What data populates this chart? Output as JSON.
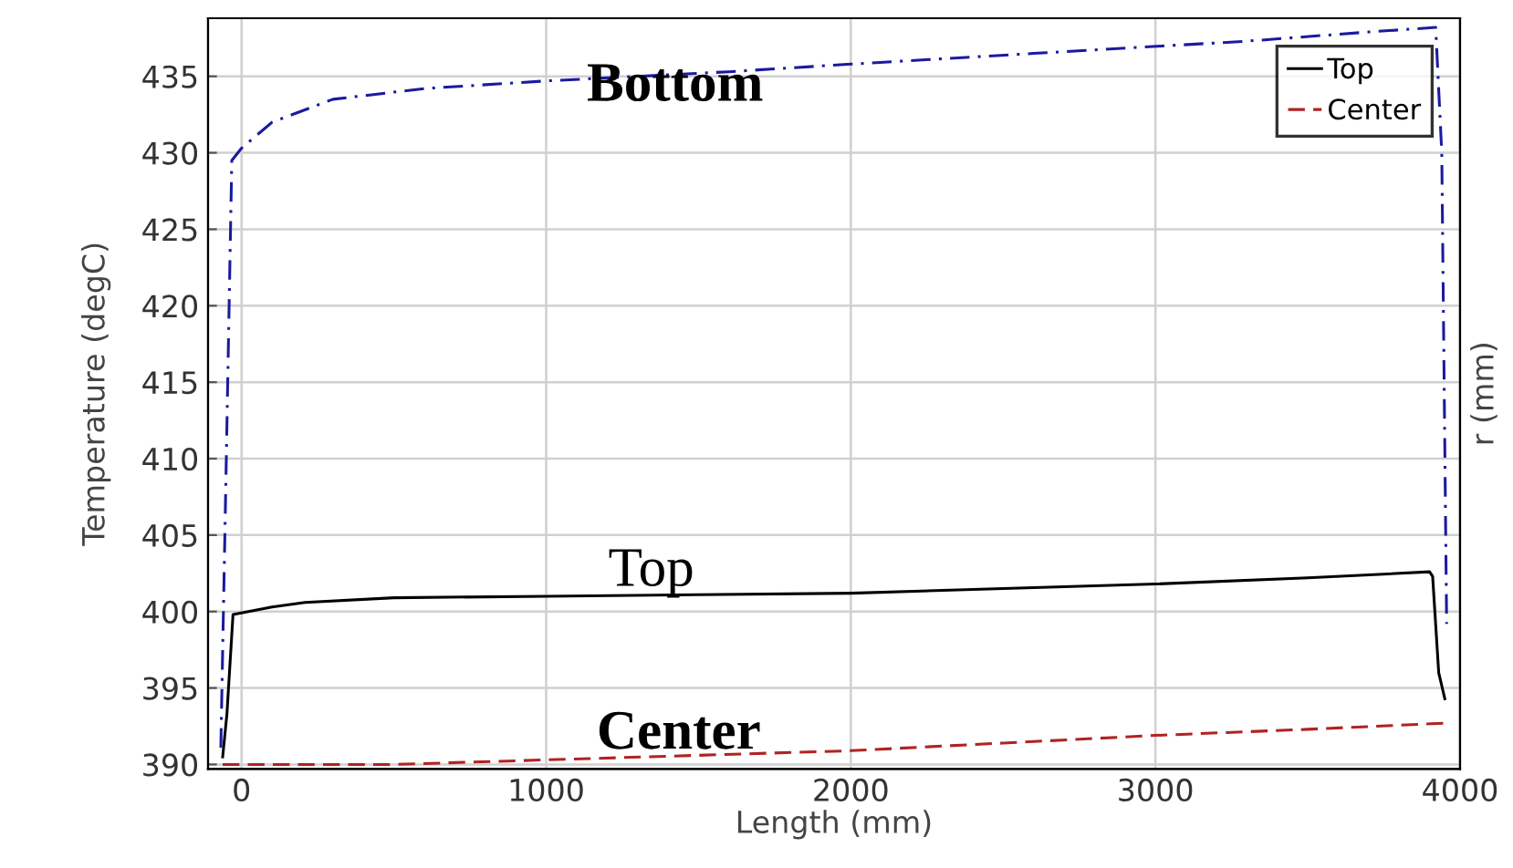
{
  "chart_data": {
    "type": "line",
    "xlabel": "Length (mm)",
    "ylabel": "Temperature (degC)",
    "y2label": "r (mm)",
    "xlim": [
      -110,
      4000
    ],
    "ylim": [
      389.7,
      438.8
    ],
    "xticks": [
      0,
      1000,
      2000,
      3000,
      4000
    ],
    "yticks": [
      390,
      395,
      400,
      405,
      410,
      415,
      420,
      425,
      430,
      435
    ],
    "grid": true,
    "legend": "top right",
    "series": [
      {
        "name": "Top",
        "color": "#000000",
        "line_style": "solid",
        "x": [
          -62,
          -48,
          -28,
          100,
          208,
          500,
          1000,
          1500,
          2000,
          2500,
          3000,
          3500,
          3900,
          3910,
          3930,
          3950
        ],
        "values": [
          390.5,
          393.3,
          399.8,
          400.3,
          400.6,
          400.9,
          401.0,
          401.1,
          401.2,
          401.5,
          401.8,
          402.2,
          402.6,
          402.3,
          396.0,
          394.3
        ]
      },
      {
        "name": "Center",
        "color": "#b22222",
        "line_style": "dashed",
        "x": [
          -62,
          500,
          1000,
          1500,
          2000,
          2500,
          3000,
          3500,
          3950
        ],
        "values": [
          390.0,
          390.0,
          390.3,
          390.6,
          390.9,
          391.4,
          391.9,
          392.3,
          392.7
        ]
      },
      {
        "color": "#1a1aa0",
        "line_style": "dashdot",
        "x": [
          -68,
          -50,
          -32,
          0,
          100,
          300,
          600,
          1000,
          1600,
          2000,
          2600,
          3300,
          3700,
          3920,
          3940,
          3956
        ],
        "values": [
          391.1,
          410.0,
          429.5,
          430.3,
          432.0,
          433.5,
          434.2,
          434.7,
          435.3,
          435.8,
          436.5,
          437.3,
          437.9,
          438.2,
          430.0,
          399.2
        ]
      }
    ],
    "annotations": [
      "Bottom",
      "Top",
      "Center"
    ]
  }
}
